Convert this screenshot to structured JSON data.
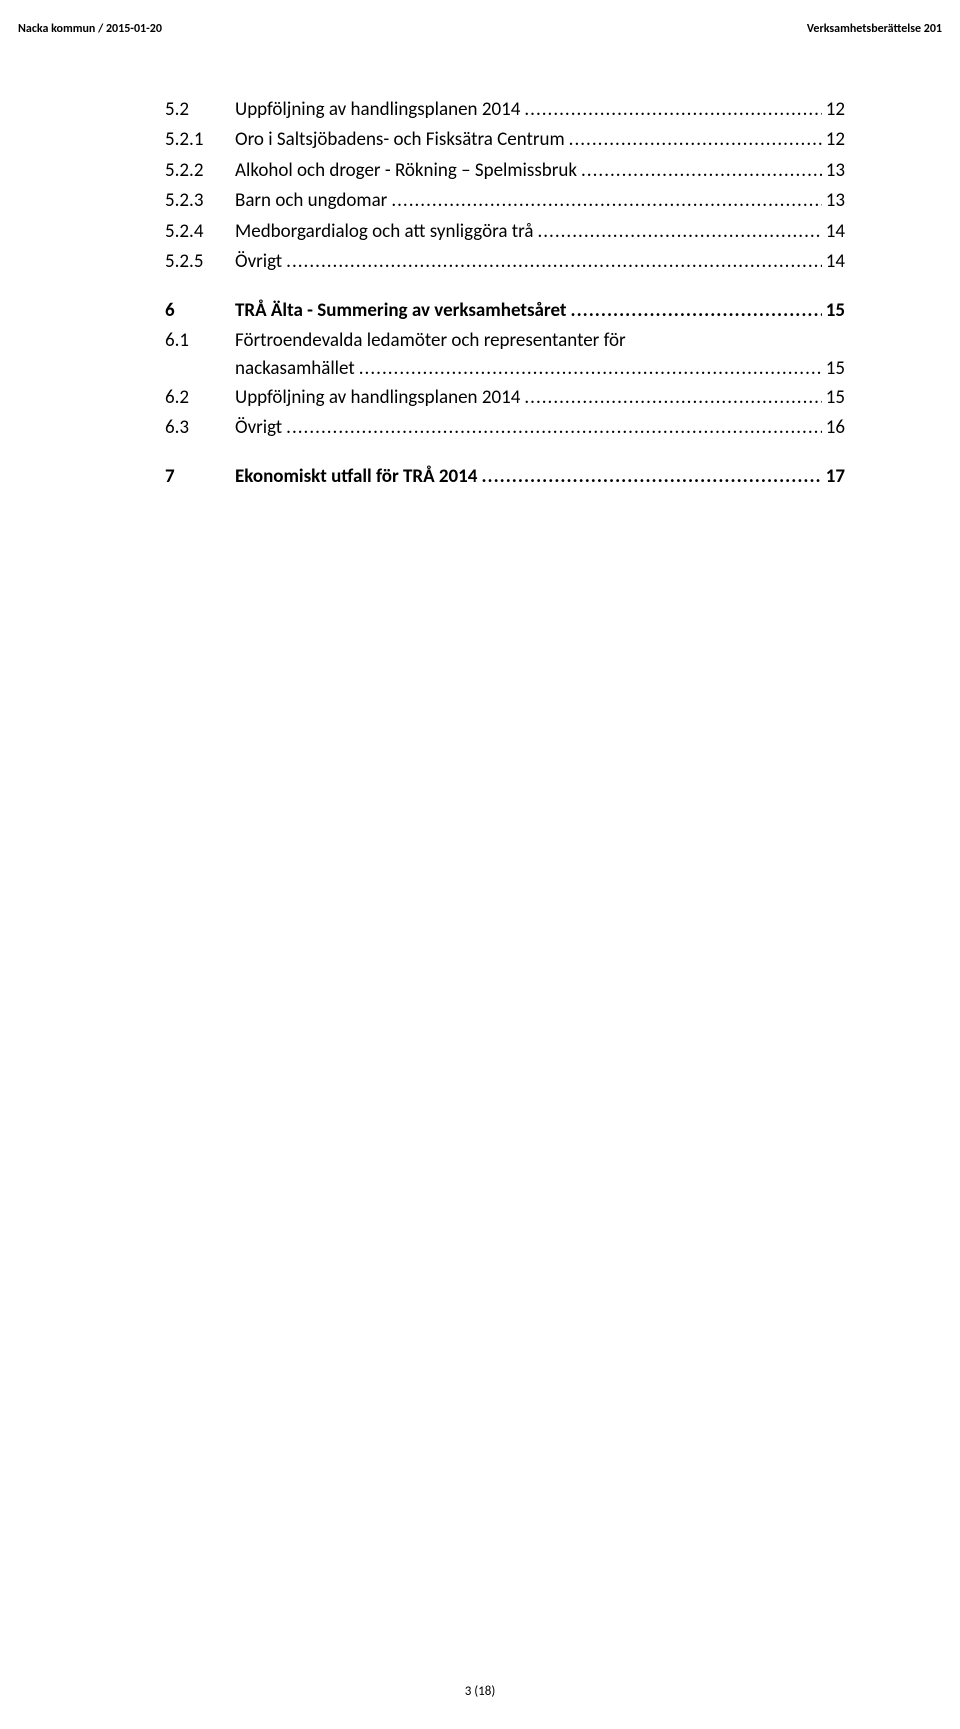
{
  "header": {
    "left": "Nacka kommun  /  2015-01-20",
    "right": "Verksamhetsberättelse 201"
  },
  "toc": [
    {
      "num": "5.2",
      "title": "Uppföljning av handlingsplanen 2014",
      "page": "12",
      "bold": false
    },
    {
      "num": "5.2.1",
      "title": "Oro i Saltsjöbadens- och Fisksätra Centrum",
      "page": "12",
      "bold": false
    },
    {
      "num": "5.2.2",
      "title": "Alkohol och droger - Rökning – Spelmissbruk",
      "page": "13",
      "bold": false
    },
    {
      "num": "5.2.3",
      "title": "Barn och ungdomar",
      "page": "13",
      "bold": false
    },
    {
      "num": "5.2.4",
      "title": "Medborgardialog och att synliggöra trå",
      "page": "14",
      "bold": false
    },
    {
      "num": "5.2.5",
      "title": "Övrigt",
      "page": "14",
      "bold": false
    },
    {
      "spacer": true
    },
    {
      "num": "6",
      "title": "TRÅ  Älta - Summering av verksamhetsåret",
      "page": "15",
      "bold": true
    },
    {
      "num": "6.1",
      "title": "Förtroendevalda ledamöter och representanter för",
      "cont": "nackasamhället",
      "page": "15",
      "bold": false
    },
    {
      "num": "6.2",
      "title": "Uppföljning av handlingsplanen 2014",
      "page": "15",
      "bold": false
    },
    {
      "num": "6.3",
      "title": "Övrigt",
      "page": "16",
      "bold": false
    },
    {
      "spacer": true
    },
    {
      "num": "7",
      "title": "Ekonomiskt utfall för TRÅ 2014",
      "page": "17",
      "bold": true
    }
  ],
  "footer": {
    "page": "3 (18)"
  }
}
